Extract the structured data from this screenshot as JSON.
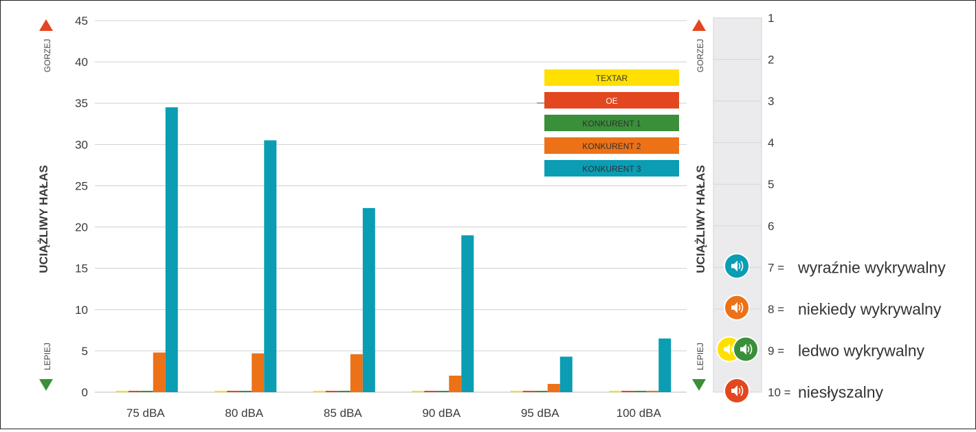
{
  "chart_data": {
    "type": "bar",
    "categories": [
      "75 dBA",
      "80 dBA",
      "85 dBA",
      "90 dBA",
      "95 dBA",
      "100 dBA"
    ],
    "series": [
      {
        "name": "TEXTAR",
        "color": "#ffe000",
        "values": [
          0.1,
          0.1,
          0.1,
          0.1,
          0.1,
          0.1
        ]
      },
      {
        "name": "OE",
        "color": "#e2471f",
        "values": [
          0.1,
          0.1,
          0.1,
          0.1,
          0.1,
          0.1
        ]
      },
      {
        "name": "KONKURENT 1",
        "color": "#3a8f3a",
        "values": [
          0.1,
          0.1,
          0.1,
          0.1,
          0.1,
          0.1
        ]
      },
      {
        "name": "KONKURENT 2",
        "color": "#ec7117",
        "values": [
          4.8,
          4.7,
          4.6,
          2.0,
          1.0,
          0.1
        ]
      },
      {
        "name": "KONKURENT 3",
        "color": "#0a9db4",
        "values": [
          34.5,
          30.5,
          22.3,
          19.0,
          4.3,
          6.5
        ]
      }
    ],
    "ylim": [
      0,
      45
    ],
    "yticks": [
      "0",
      "5",
      "10",
      "15",
      "20",
      "25",
      "30",
      "35",
      "40",
      "45"
    ],
    "ylabel": "UCIĄŻLIWY HAŁAS",
    "worse_label": "GORZEJ",
    "better_label": "LEPIEJ",
    "worse_arrow_color": "#e2471f",
    "better_arrow_color": "#3a8f3a",
    "grid": true,
    "legend_position": "top-right"
  },
  "scale_panel": {
    "ylabel": "UCIĄŻLIWY HAŁAS",
    "worse_label": "GORZEJ",
    "better_label": "LEPIEJ",
    "ticks": [
      "1",
      "2",
      "3",
      "4",
      "5",
      "6",
      "7 =",
      "8 =",
      "9 =",
      "10 ="
    ],
    "range": [
      1,
      10
    ],
    "descriptions": [
      {
        "rating": 7,
        "text": "wyraźnie wykrywalny"
      },
      {
        "rating": 8,
        "text": "niekiedy wykrywalny"
      },
      {
        "rating": 9,
        "text": "ledwo wykrywalny"
      },
      {
        "rating": 10,
        "text": "niesłyszalny"
      }
    ],
    "markers": [
      {
        "series": "KONKURENT 3",
        "rating": 7,
        "color": "#0a9db4",
        "icon": "speaker-icon"
      },
      {
        "series": "KONKURENT 2",
        "rating": 8,
        "color": "#ec7117",
        "icon": "speaker-icon"
      },
      {
        "series": "TEXTAR",
        "rating": 9,
        "color": "#ffe000",
        "icon": "speaker-icon"
      },
      {
        "series": "KONKURENT 1",
        "rating": 9,
        "color": "#3a8f3a",
        "icon": "speaker-icon"
      },
      {
        "series": "OE",
        "rating": 10,
        "color": "#e2471f",
        "icon": "speaker-icon"
      }
    ]
  }
}
